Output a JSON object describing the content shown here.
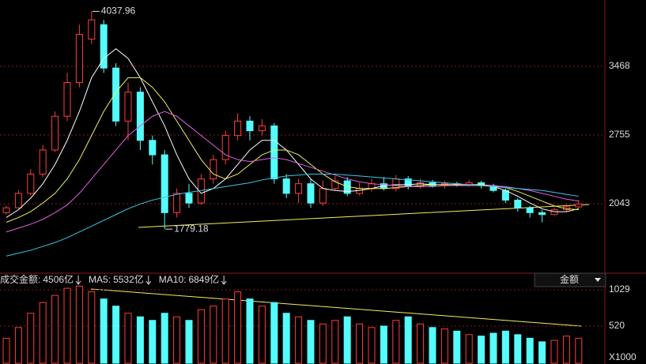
{
  "chart_data": [
    {
      "type": "candlestick",
      "open": [
        1950,
        2000,
        2150,
        2350,
        2600,
        2950,
        3300,
        3750,
        3900,
        3450,
        2900,
        3200,
        2700,
        2550,
        1950,
        2150,
        2050,
        2300,
        2500,
        2750,
        2900,
        2800,
        2850,
        2300,
        2150,
        2250,
        2050,
        2200,
        2280,
        2150,
        2200,
        2250,
        2200,
        2300,
        2220,
        2260,
        2230,
        2250,
        2240,
        2260,
        2230,
        2180,
        2080,
        2000,
        1950,
        1930,
        1980,
        2010
      ],
      "close": [
        2000,
        2150,
        2350,
        2600,
        2950,
        3300,
        3800,
        3950,
        3450,
        2900,
        3200,
        2700,
        2550,
        1950,
        2150,
        2050,
        2300,
        2500,
        2750,
        2900,
        2800,
        2850,
        2300,
        2150,
        2250,
        2050,
        2200,
        2280,
        2150,
        2200,
        2250,
        2200,
        2300,
        2220,
        2260,
        2230,
        2250,
        2240,
        2260,
        2230,
        2180,
        2080,
        2000,
        1950,
        1930,
        1980,
        2010,
        2040
      ],
      "high": [
        2020,
        2180,
        2400,
        2650,
        3000,
        3400,
        3900,
        4037.96,
        3950,
        3500,
        3300,
        3250,
        2750,
        2600,
        2200,
        2250,
        2350,
        2550,
        2800,
        2980,
        2950,
        2920,
        2880,
        2350,
        2300,
        2300,
        2280,
        2330,
        2320,
        2260,
        2300,
        2320,
        2340,
        2330,
        2300,
        2290,
        2280,
        2270,
        2290,
        2280,
        2250,
        2200,
        2100,
        2020,
        1980,
        2000,
        2040,
        2080
      ],
      "low": [
        1930,
        1990,
        2130,
        2320,
        2580,
        2900,
        3250,
        3700,
        3400,
        2850,
        2700,
        2600,
        2450,
        1779.18,
        1900,
        2000,
        2030,
        2250,
        2450,
        2700,
        2700,
        2750,
        2250,
        2100,
        2050,
        2000,
        2020,
        2180,
        2120,
        2130,
        2170,
        2180,
        2170,
        2190,
        2200,
        2210,
        2200,
        2220,
        2220,
        2200,
        2160,
        2050,
        1960,
        1900,
        1850,
        1920,
        1960,
        1990
      ],
      "series": [
        {
          "color": "#ffffff",
          "values": [
            1900,
            1980,
            2100,
            2250,
            2450,
            2700,
            3000,
            3350,
            3550,
            3650,
            3550,
            3350,
            3100,
            2850,
            2550,
            2300,
            2150,
            2200,
            2300,
            2450,
            2600,
            2700,
            2700,
            2600,
            2450,
            2300,
            2200,
            2180,
            2170,
            2180,
            2200,
            2230,
            2240,
            2240,
            2250,
            2240,
            2240,
            2240,
            2240,
            2240,
            2220,
            2180,
            2120,
            2050,
            1990,
            1960,
            1960,
            1990
          ]
        },
        {
          "color": "#f0f060",
          "values": [
            1850,
            1900,
            1960,
            2050,
            2150,
            2300,
            2500,
            2750,
            3000,
            3200,
            3350,
            3350,
            3250,
            3100,
            2900,
            2700,
            2500,
            2350,
            2300,
            2350,
            2450,
            2550,
            2600,
            2600,
            2550,
            2450,
            2350,
            2270,
            2220,
            2200,
            2200,
            2200,
            2210,
            2220,
            2230,
            2240,
            2240,
            2240,
            2240,
            2240,
            2230,
            2210,
            2170,
            2120,
            2070,
            2020,
            1990,
            1980
          ]
        },
        {
          "color": "#e060e0",
          "values": [
            1750,
            1790,
            1830,
            1880,
            1950,
            2030,
            2150,
            2300,
            2450,
            2600,
            2750,
            2850,
            2950,
            3000,
            2950,
            2850,
            2750,
            2650,
            2550,
            2500,
            2480,
            2500,
            2520,
            2500,
            2460,
            2420,
            2380,
            2340,
            2300,
            2270,
            2250,
            2240,
            2230,
            2220,
            2220,
            2220,
            2230,
            2230,
            2230,
            2230,
            2230,
            2220,
            2200,
            2180,
            2150,
            2120,
            2090,
            2070
          ]
        },
        {
          "color": "#3cc8e8",
          "values": [
            1500,
            1530,
            1560,
            1600,
            1640,
            1690,
            1750,
            1810,
            1870,
            1930,
            1990,
            2040,
            2080,
            2110,
            2140,
            2160,
            2180,
            2200,
            2220,
            2240,
            2260,
            2290,
            2310,
            2330,
            2340,
            2350,
            2350,
            2350,
            2340,
            2330,
            2320,
            2310,
            2300,
            2290,
            2280,
            2270,
            2260,
            2250,
            2240,
            2230,
            2220,
            2210,
            2200,
            2190,
            2180,
            2160,
            2140,
            2120
          ]
        }
      ],
      "up_color": "#ff3c3c",
      "down_color": "#54fcfc",
      "ylim": [
        1371,
        4156
      ],
      "yticks": [
        2043,
        2755,
        3468
      ],
      "grid": true
    },
    {
      "type": "bar",
      "indicators": [
        {
          "label": "成交金额:",
          "value": "4506亿",
          "color": "#54fcfc"
        },
        {
          "label": "MA5:",
          "value": "5532亿",
          "color": "#ffffff"
        },
        {
          "label": "MA10:",
          "value": "6849亿",
          "color": "#f0f060"
        }
      ],
      "dropdown": "金额",
      "unit": "X1000",
      "values": [
        350,
        500,
        700,
        850,
        950,
        1050,
        1080,
        1000,
        900,
        800,
        700,
        650,
        600,
        700,
        650,
        600,
        750,
        800,
        900,
        1000,
        900,
        800,
        850,
        700,
        650,
        600,
        550,
        600,
        650,
        550,
        500,
        520,
        600,
        650,
        550,
        500,
        480,
        450,
        400,
        380,
        420,
        450,
        400,
        350,
        300,
        320,
        380,
        350
      ],
      "ylim": [
        0,
        1084
      ],
      "yticks": [
        520,
        1029
      ],
      "grid": true
    }
  ]
}
